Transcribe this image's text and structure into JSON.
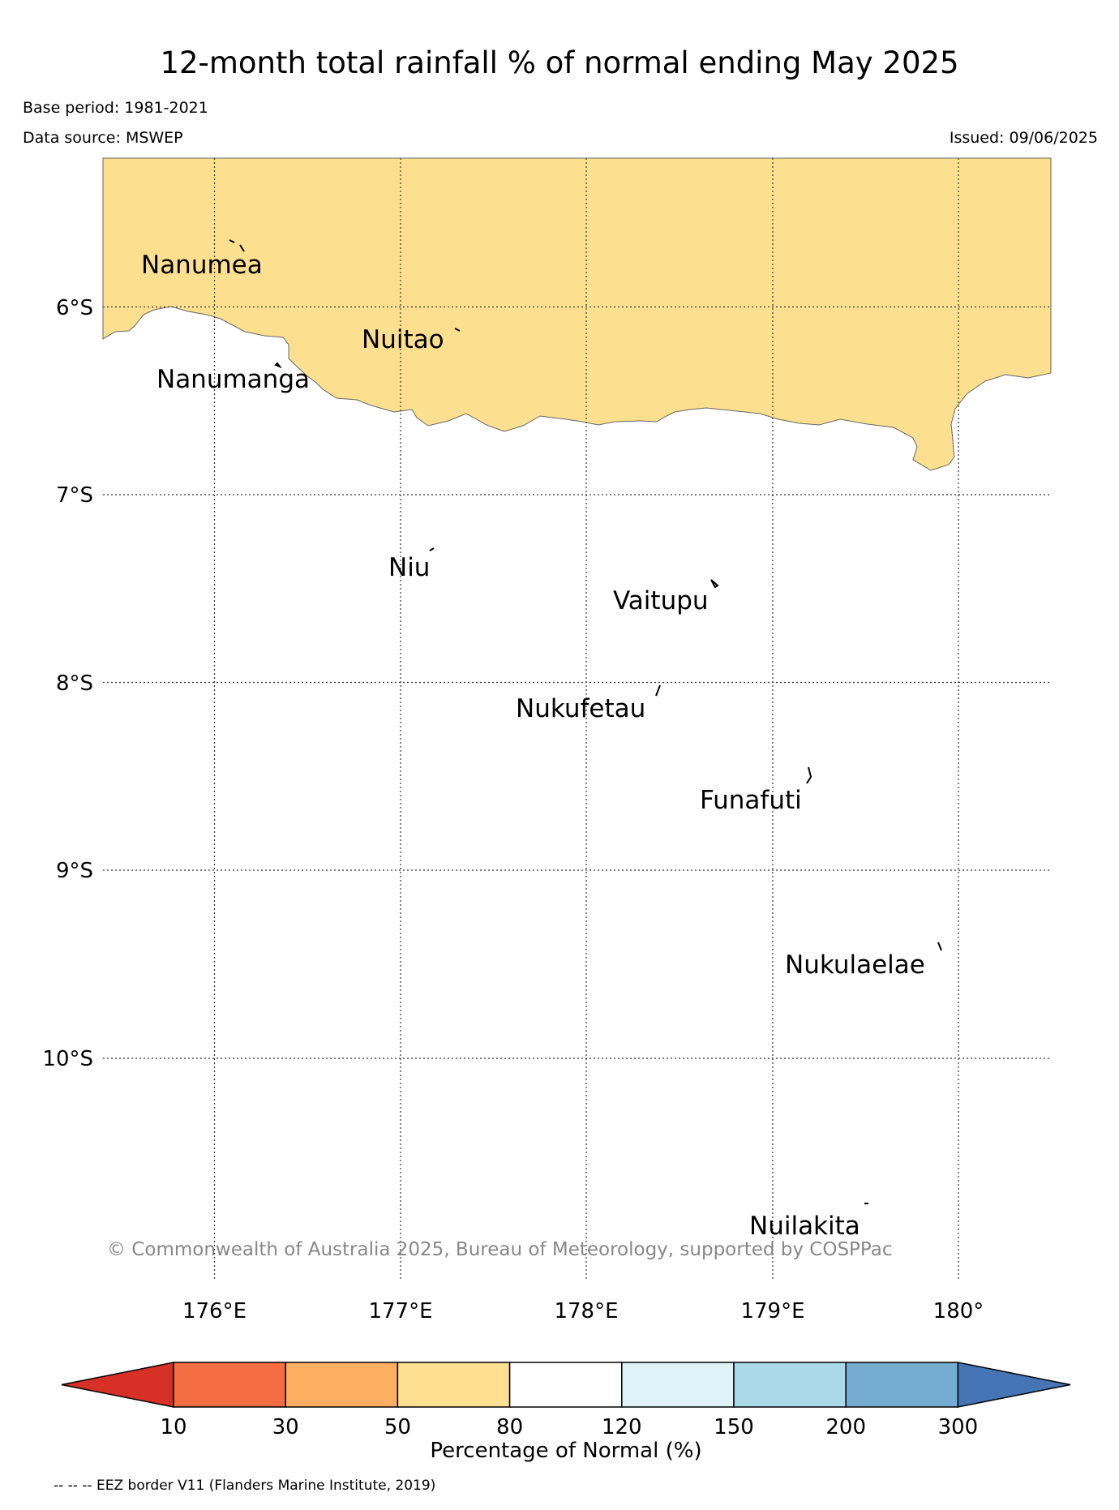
{
  "title": "12-month total rainfall % of normal ending May 2025",
  "base_period": "Base period: 1981-2021",
  "data_source": "Data source: MSWEP",
  "issued": "Issued: 09/06/2025",
  "copyright": "© Commonwealth of Australia 2025, Bureau of Meteorology, supported by COSPPac",
  "eez_note": "-- -- -- EEZ border V11 (Flanders Marine Institute, 2019)",
  "map": {
    "lon_ticks": [
      "176°E",
      "177°E",
      "178°E",
      "179°E",
      "180°"
    ],
    "lat_ticks": [
      "6°S",
      "7°S",
      "8°S",
      "9°S",
      "10°S"
    ],
    "grid": true,
    "shaded_region": {
      "category": "50-80",
      "color": "#fde08f"
    },
    "places": [
      {
        "name": "Nanumea"
      },
      {
        "name": "Nuitao"
      },
      {
        "name": "Nanumanga"
      },
      {
        "name": "Niu"
      },
      {
        "name": "Vaitupu"
      },
      {
        "name": "Nukufetau"
      },
      {
        "name": "Funafuti"
      },
      {
        "name": "Nukulaelae"
      },
      {
        "name": "Nuilakita"
      }
    ]
  },
  "colorbar": {
    "label": "Percentage of Normal (%)",
    "ticks": [
      "10",
      "30",
      "50",
      "80",
      "120",
      "150",
      "200",
      "300"
    ],
    "colors": [
      "#d73027",
      "#f46d43",
      "#fdae61",
      "#fee090",
      "#ffffff",
      "#e0f3f8",
      "#abd9e9",
      "#74add1",
      "#4575b4"
    ]
  }
}
